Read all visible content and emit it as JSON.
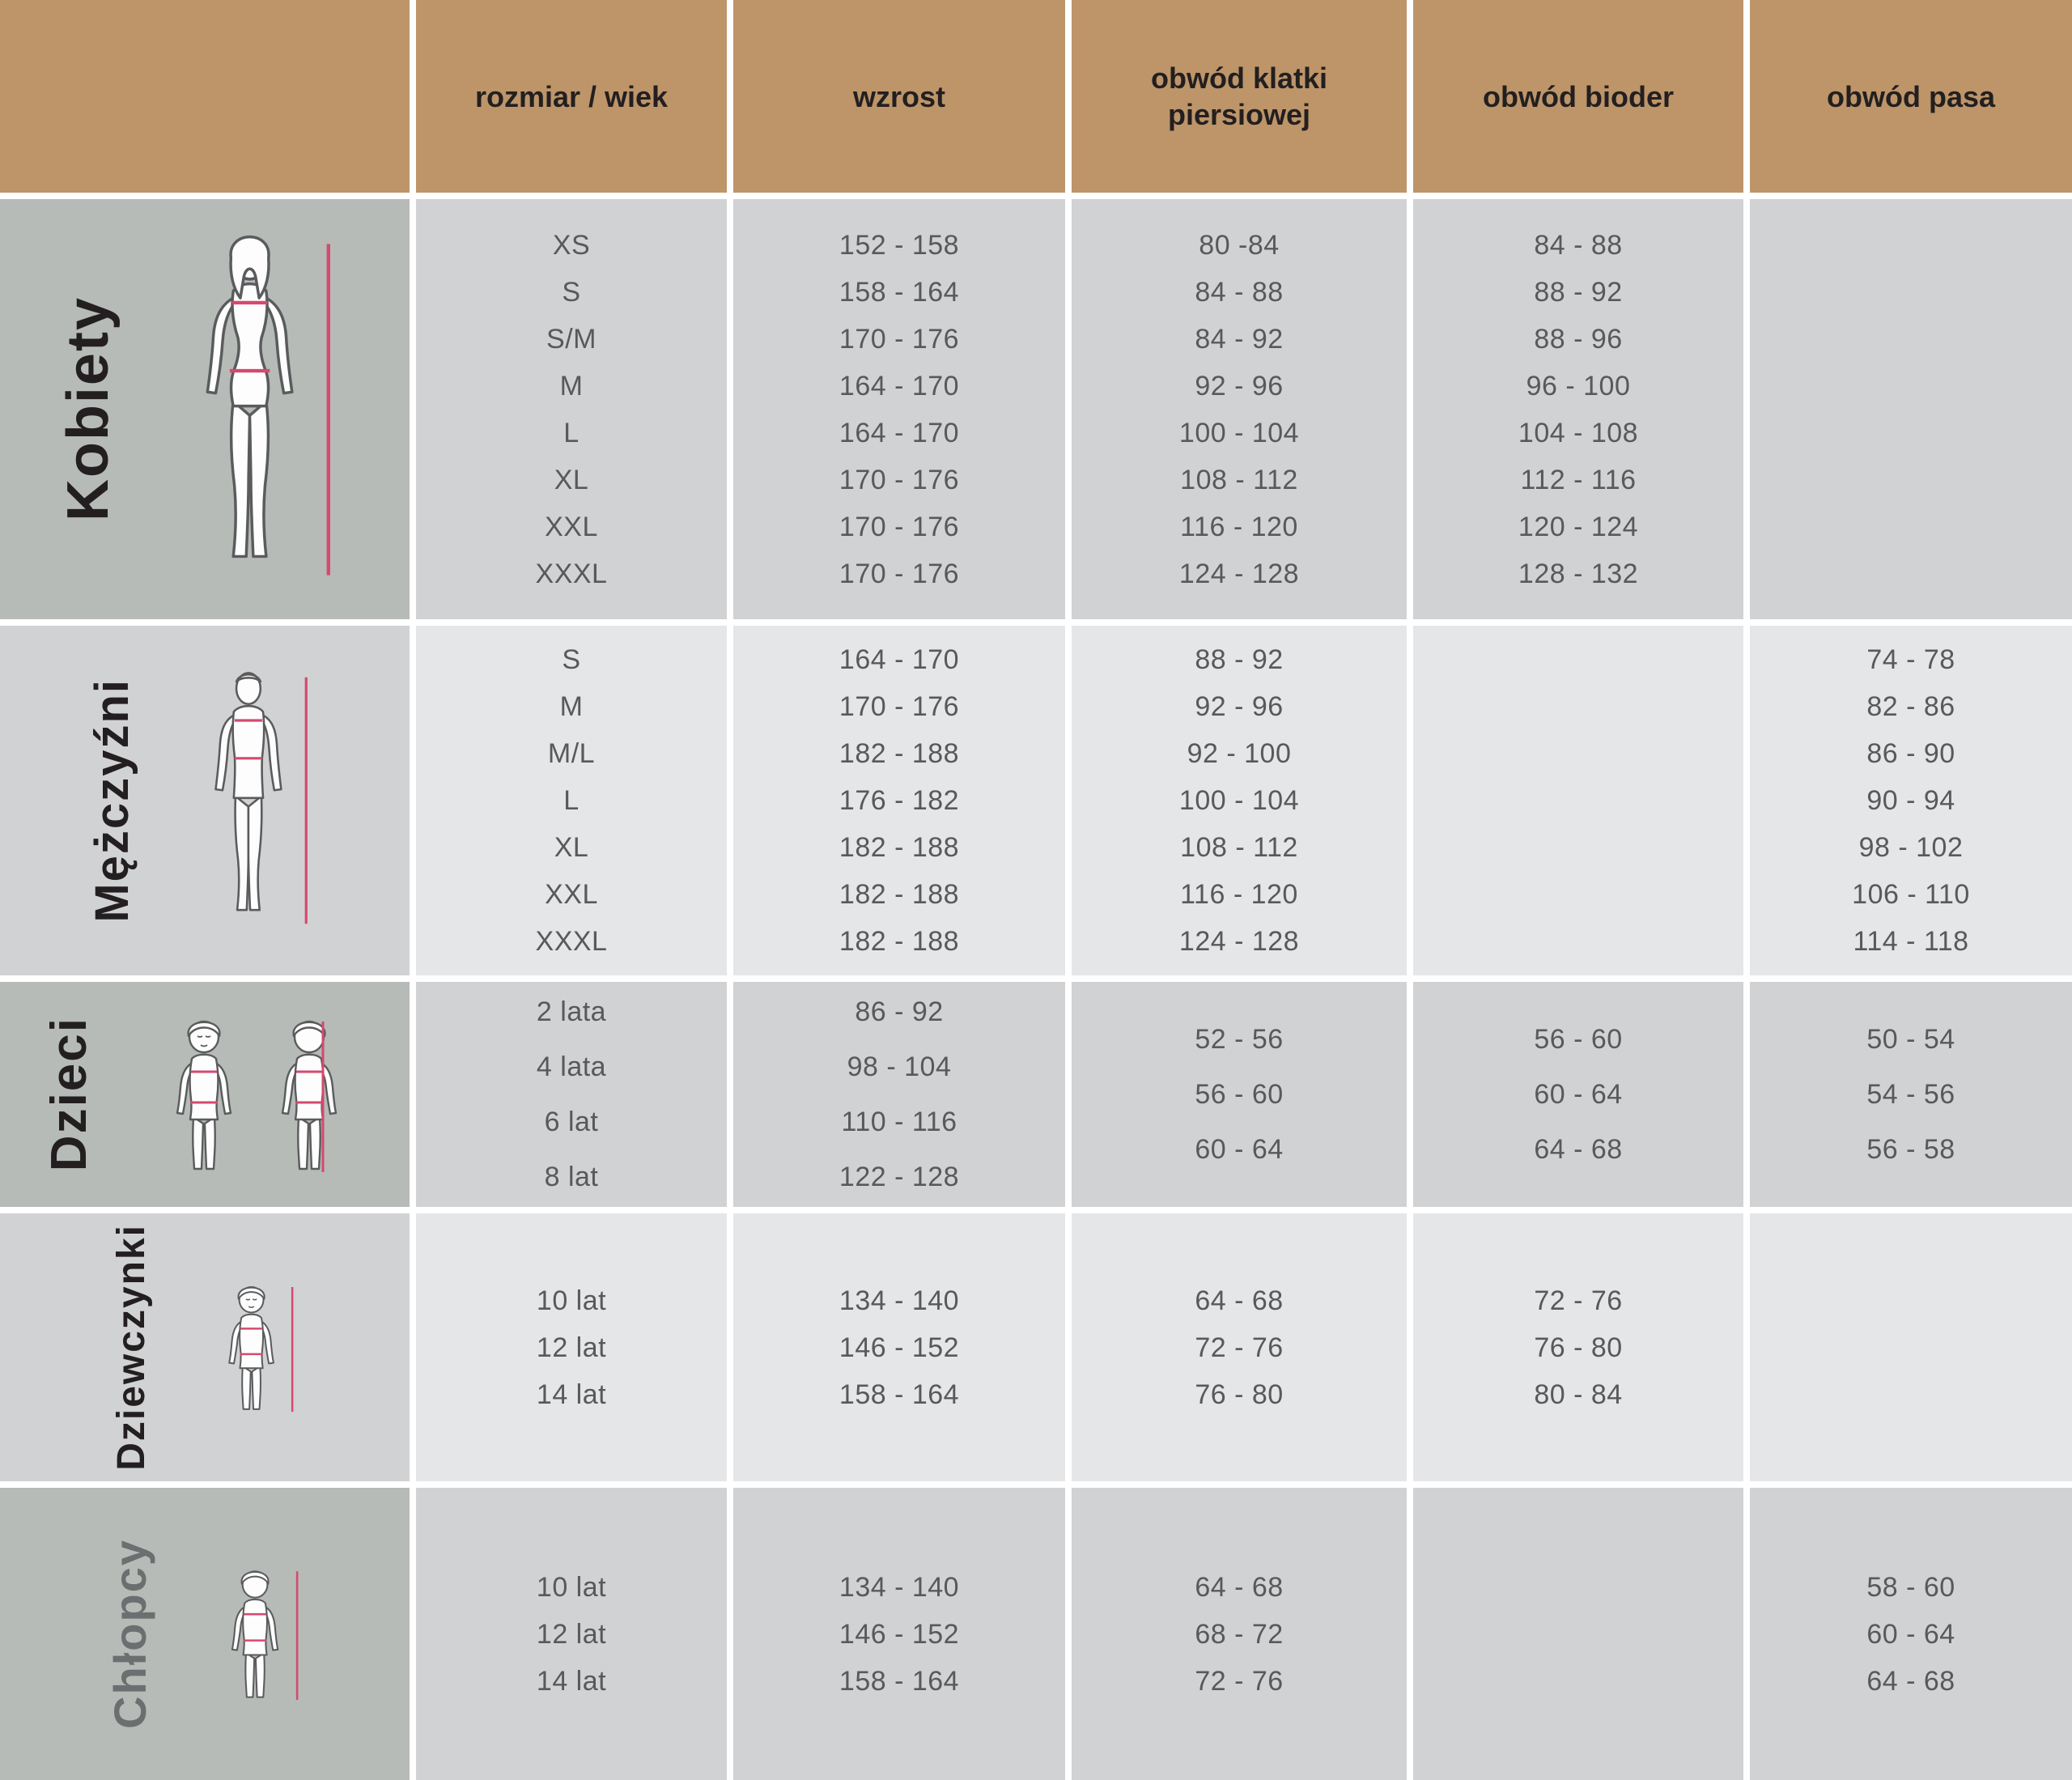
{
  "table": {
    "header": {
      "corner": "",
      "columns": [
        "rozmiar / wiek",
        "wzrost",
        "obwód klatki piersiowej",
        "obwód bioder",
        "obwód pasa"
      ],
      "background": "#bd9569",
      "text_color": "#231f20"
    },
    "colors": {
      "label_cell_dark": "#b6bbb8",
      "cell_medium": "#d1d2d3",
      "cell_light": "#e5e6e8",
      "accent_pink": "#d44a6e",
      "data_text": "#58595b",
      "header_text": "#231f20",
      "gap_white": "#ffffff"
    },
    "sections": [
      {
        "id": "kobiety",
        "label": "Kobiety",
        "label_text_color": "#231f20",
        "tone": "dark",
        "figure": "woman",
        "columns": {
          "size": [
            "XS",
            "S",
            "S/M",
            "M",
            "L",
            "XL",
            "XXL",
            "XXXL"
          ],
          "height": [
            "152 - 158",
            "158 - 164",
            "170 - 176",
            "164 - 170",
            "164 - 170",
            "170 - 176",
            "170 - 176",
            "170 - 176"
          ],
          "chest": [
            "80 -84",
            "84 - 88",
            "84 - 92",
            "92 - 96",
            "100 - 104",
            "108 - 112",
            "116 - 120",
            "124 - 128"
          ],
          "hips": [
            "84 - 88",
            "88 - 92",
            "88 - 96",
            "96 - 100",
            "104 - 108",
            "112 - 116",
            "120 - 124",
            "128 - 132"
          ],
          "waist": []
        }
      },
      {
        "id": "mezczyzni",
        "label": "Mężczyźni",
        "label_text_color": "#231f20",
        "tone": "light",
        "figure": "man",
        "columns": {
          "size": [
            "S",
            "M",
            "M/L",
            "L",
            "XL",
            "XXL",
            "XXXL"
          ],
          "height": [
            "164 - 170",
            "170 - 176",
            "182 - 188",
            "176 - 182",
            "182 - 188",
            "182 - 188",
            "182 - 188"
          ],
          "chest": [
            "88 - 92",
            "92 - 96",
            "92 - 100",
            "100 - 104",
            "108 - 112",
            "116 - 120",
            "124 - 128"
          ],
          "hips": [],
          "waist": [
            "74 - 78",
            "82 - 86",
            "86 - 90",
            "90 - 94",
            "98 - 102",
            "106 - 110",
            "114 - 118"
          ]
        }
      },
      {
        "id": "dzieci",
        "label": "Dzieci",
        "label_text_color": "#231f20",
        "tone": "dark",
        "figure": "children",
        "columns": {
          "size": [
            "2 lata",
            "4 lata",
            "6 lat",
            "8 lat"
          ],
          "height": [
            "86 - 92",
            "98 - 104",
            "110 - 116",
            "122 - 128"
          ],
          "chest": [
            "52 - 56",
            "56 - 60",
            "60 - 64"
          ],
          "hips": [
            "56 - 60",
            "60 - 64",
            "64 - 68"
          ],
          "waist": [
            "50 - 54",
            "54 - 56",
            "56 - 58"
          ]
        }
      },
      {
        "id": "dziewczynki",
        "label": "Dziewczynki",
        "label_text_color": "#231f20",
        "tone": "light",
        "figure": "girl",
        "columns": {
          "size": [
            "10 lat",
            "12 lat",
            "14 lat"
          ],
          "height": [
            "134 - 140",
            "146 - 152",
            "158 - 164"
          ],
          "chest": [
            "64 - 68",
            "72 - 76",
            "76 - 80"
          ],
          "hips": [
            "72 - 76",
            "76 - 80",
            "80 - 84"
          ],
          "waist": []
        }
      },
      {
        "id": "chlopcy",
        "label": "Chłopcy",
        "label_text_color": "#6d6e70",
        "tone": "dark",
        "figure": "boy",
        "columns": {
          "size": [
            "10 lat",
            "12 lat",
            "14 lat"
          ],
          "height": [
            "134 - 140",
            "146 - 152",
            "158 - 164"
          ],
          "chest": [
            "64 - 68",
            "68 - 72",
            "72 - 76"
          ],
          "hips": [],
          "waist": [
            "58 - 60",
            "60 - 64",
            "64 - 68"
          ]
        }
      }
    ]
  }
}
